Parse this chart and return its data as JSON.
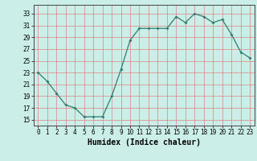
{
  "x": [
    0,
    1,
    2,
    3,
    4,
    5,
    6,
    7,
    8,
    9,
    10,
    11,
    12,
    13,
    14,
    15,
    16,
    17,
    18,
    19,
    20,
    21,
    22,
    23
  ],
  "y": [
    23,
    21.5,
    19.5,
    17.5,
    17,
    15.5,
    15.5,
    15.5,
    19,
    23.5,
    28.5,
    30.5,
    30.5,
    30.5,
    30.5,
    32.5,
    31.5,
    33,
    32.5,
    31.5,
    32,
    29.5,
    26.5,
    25.5
  ],
  "line_color": "#2e7d6e",
  "marker": "D",
  "marker_size": 2,
  "bg_color": "#cceee8",
  "grid_color": "#e08080",
  "xlabel": "Humidex (Indice chaleur)",
  "xlim": [
    -0.5,
    23.5
  ],
  "ylim": [
    14,
    34.5
  ],
  "yticks": [
    15,
    17,
    19,
    21,
    23,
    25,
    27,
    29,
    31,
    33
  ],
  "xticks": [
    0,
    1,
    2,
    3,
    4,
    5,
    6,
    7,
    8,
    9,
    10,
    11,
    12,
    13,
    14,
    15,
    16,
    17,
    18,
    19,
    20,
    21,
    22,
    23
  ],
  "tick_fontsize": 5.5,
  "xlabel_fontsize": 7
}
